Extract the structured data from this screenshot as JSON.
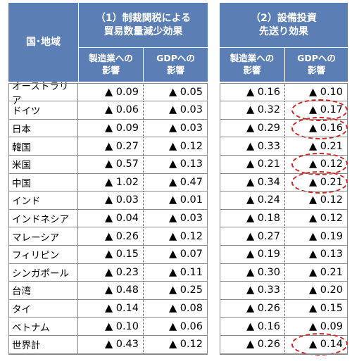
{
  "header": {
    "country_label": "国･地域",
    "section1_line1": "（1）制裁関税による",
    "section1_line2": "貿易数量減少効果",
    "section2_line1": "（2）設備投資",
    "section2_line2": "先送り効果",
    "sub_mfg_line1": "製造業への",
    "sub_mfg_line2": "影響",
    "sub_gdp_line1": "GDPへの",
    "sub_gdp_line2": "影響"
  },
  "rows": [
    {
      "name": "オーストラリア",
      "t_mfg": "▲ 0.09",
      "t_gdp": "▲ 0.05",
      "i_mfg": "▲ 0.16",
      "i_gdp": "▲ 0.10",
      "circled": false
    },
    {
      "name": "ドイツ",
      "t_mfg": "▲ 0.06",
      "t_gdp": "▲ 0.03",
      "i_mfg": "▲ 0.32",
      "i_gdp": "▲ 0.17",
      "circled": true
    },
    {
      "name": "日本",
      "t_mfg": "▲ 0.09",
      "t_gdp": "▲ 0.03",
      "i_mfg": "▲ 0.29",
      "i_gdp": "▲ 0.16",
      "circled": true
    },
    {
      "name": "韓国",
      "t_mfg": "▲ 0.27",
      "t_gdp": "▲ 0.12",
      "i_mfg": "▲ 0.33",
      "i_gdp": "▲ 0.21",
      "circled": false
    },
    {
      "name": "米国",
      "t_mfg": "▲ 0.57",
      "t_gdp": "▲ 0.13",
      "i_mfg": "▲ 0.21",
      "i_gdp": "▲ 0.12",
      "circled": true
    },
    {
      "name": "中国",
      "t_mfg": "▲ 1.02",
      "t_gdp": "▲ 0.47",
      "i_mfg": "▲ 0.34",
      "i_gdp": "▲ 0.21",
      "circled": true
    },
    {
      "name": "インド",
      "t_mfg": "▲ 0.03",
      "t_gdp": "▲ 0.01",
      "i_mfg": "▲ 0.24",
      "i_gdp": "▲ 0.12",
      "circled": false
    },
    {
      "name": "インドネシア",
      "t_mfg": "▲ 0.04",
      "t_gdp": "▲ 0.03",
      "i_mfg": "▲ 0.18",
      "i_gdp": "▲ 0.12",
      "circled": false
    },
    {
      "name": "マレーシア",
      "t_mfg": "▲ 0.26",
      "t_gdp": "▲ 0.12",
      "i_mfg": "▲ 0.27",
      "i_gdp": "▲ 0.19",
      "circled": false
    },
    {
      "name": "フィリピン",
      "t_mfg": "▲ 0.15",
      "t_gdp": "▲ 0.07",
      "i_mfg": "▲ 0.19",
      "i_gdp": "▲ 0.13",
      "circled": false
    },
    {
      "name": "シンガポール",
      "t_mfg": "▲ 0.23",
      "t_gdp": "▲ 0.11",
      "i_mfg": "▲ 0.30",
      "i_gdp": "▲ 0.21",
      "circled": false
    },
    {
      "name": "台湾",
      "t_mfg": "▲ 0.48",
      "t_gdp": "▲ 0.25",
      "i_mfg": "▲ 0.33",
      "i_gdp": "▲ 0.20",
      "circled": false
    },
    {
      "name": "タイ",
      "t_mfg": "▲ 0.14",
      "t_gdp": "▲ 0.08",
      "i_mfg": "▲ 0.26",
      "i_gdp": "▲ 0.15",
      "circled": false
    },
    {
      "name": "ベトナム",
      "t_mfg": "▲ 0.10",
      "t_gdp": "▲ 0.06",
      "i_mfg": "▲ 0.16",
      "i_gdp": "▲ 0.09",
      "circled": false
    },
    {
      "name": "世界計",
      "t_mfg": "▲ 0.43",
      "t_gdp": "▲ 0.12",
      "i_mfg": "▲ 0.26",
      "i_gdp": "▲ 0.14",
      "circled": true
    }
  ],
  "colors": {
    "header_bg": "#5b7fb4",
    "header_text": "#ffffff",
    "highlight": "#d02020"
  }
}
